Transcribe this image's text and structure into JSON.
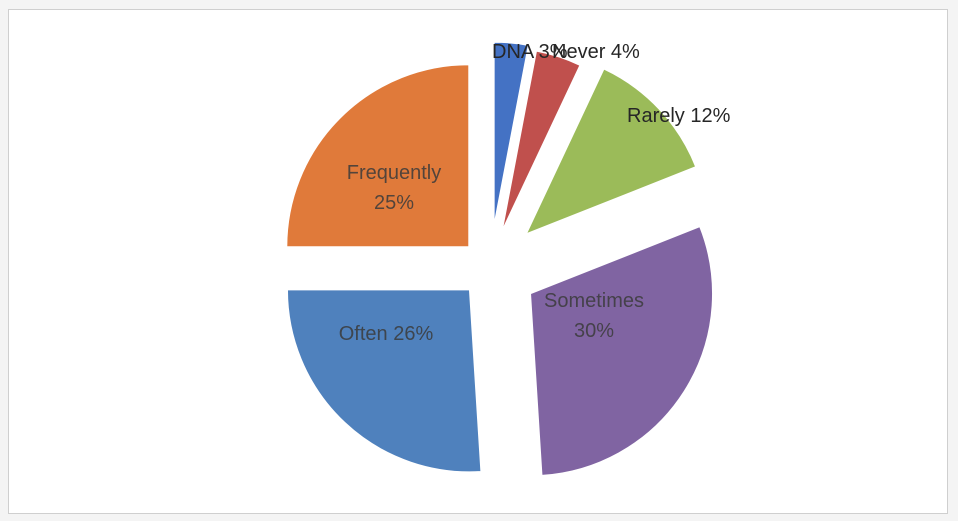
{
  "chart_data": {
    "type": "pie",
    "slices": [
      {
        "label": "DNA",
        "value": 3,
        "display": "DNA 3%",
        "color": "#4472c4"
      },
      {
        "label": "Never",
        "value": 4,
        "display": "Never 4%",
        "color": "#c0504d"
      },
      {
        "label": "Rarely",
        "value": 12,
        "display": "Rarely 12%",
        "color": "#9bbb59"
      },
      {
        "label": "Sometimes",
        "value": 30,
        "display_lines": [
          "Sometimes",
          "30%"
        ],
        "color": "#8064a2"
      },
      {
        "label": "Often",
        "value": 26,
        "display": "Often 26%",
        "color": "#4f81bd"
      },
      {
        "label": "Frequently",
        "value": 25,
        "display_lines": [
          "Frequently",
          "25%"
        ],
        "color": "#e07a3a"
      }
    ],
    "exploded": true,
    "legend": "none"
  }
}
